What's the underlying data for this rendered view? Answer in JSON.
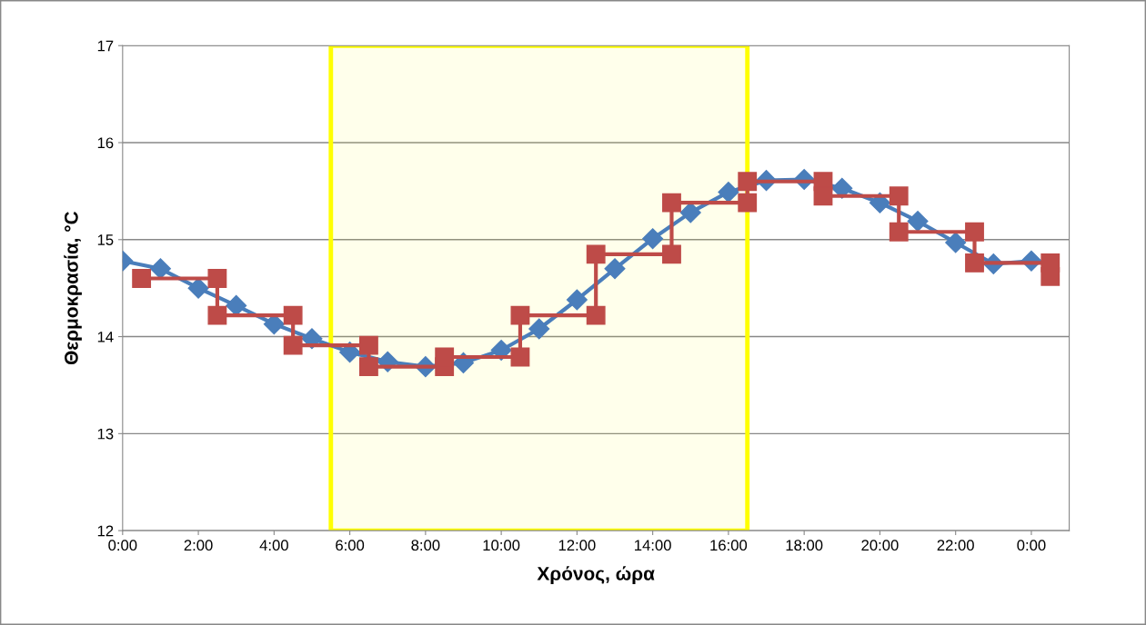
{
  "chart_data": {
    "type": "line",
    "xlabel": "Χρόνος, ώρα",
    "ylabel": "Θερμοκρασία, °C",
    "xlim": [
      0,
      25
    ],
    "xticks": [
      {
        "value": 0,
        "label": "0:00"
      },
      {
        "value": 2,
        "label": "2:00"
      },
      {
        "value": 4,
        "label": "4:00"
      },
      {
        "value": 6,
        "label": "6:00"
      },
      {
        "value": 8,
        "label": "8:00"
      },
      {
        "value": 10,
        "label": "10:00"
      },
      {
        "value": 12,
        "label": "12:00"
      },
      {
        "value": 14,
        "label": "14:00"
      },
      {
        "value": 16,
        "label": "16:00"
      },
      {
        "value": 18,
        "label": "18:00"
      },
      {
        "value": 20,
        "label": "20:00"
      },
      {
        "value": 22,
        "label": "22:00"
      },
      {
        "value": 24,
        "label": "0:00"
      }
    ],
    "ylim": [
      12,
      17
    ],
    "yticks": [
      12,
      13,
      14,
      15,
      16,
      17
    ],
    "grid": "y",
    "line_style": "solid",
    "bands": [
      {
        "axis": "x",
        "from": 5.5,
        "to": 16.5,
        "color": "#ffff00"
      }
    ],
    "series": [
      {
        "marker": "diamond",
        "color": "#4a7ebb",
        "x": [
          0,
          1,
          2,
          3,
          4,
          5,
          6,
          7,
          8,
          9,
          10,
          11,
          12,
          13,
          14,
          15,
          16,
          17,
          18,
          19,
          20,
          21,
          22,
          23,
          24
        ],
        "values": [
          14.78,
          14.7,
          14.5,
          14.32,
          14.13,
          13.98,
          13.84,
          13.74,
          13.69,
          13.73,
          13.86,
          14.08,
          14.38,
          14.7,
          15.01,
          15.28,
          15.49,
          15.61,
          15.62,
          15.53,
          15.38,
          15.19,
          14.97,
          14.75,
          14.78
        ]
      },
      {
        "marker": "square",
        "color": "#be4b48",
        "x": [
          0.5,
          2.5,
          2.5,
          4.5,
          4.5,
          6.5,
          6.5,
          8.5,
          8.5,
          10.5,
          10.5,
          12.5,
          12.5,
          14.5,
          14.5,
          16.5,
          16.5,
          18.5,
          18.5,
          20.5,
          20.5,
          22.5,
          22.5,
          24.5,
          24.5
        ],
        "values": [
          14.6,
          14.6,
          14.22,
          14.22,
          13.91,
          13.91,
          13.69,
          13.69,
          13.79,
          13.79,
          14.22,
          14.22,
          14.85,
          14.85,
          15.38,
          15.38,
          15.6,
          15.6,
          15.45,
          15.45,
          15.08,
          15.08,
          14.76,
          14.76,
          14.62
        ]
      }
    ]
  }
}
